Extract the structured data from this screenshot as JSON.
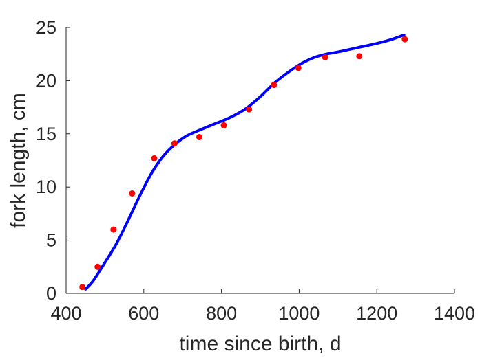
{
  "chart_data": {
    "type": "scatter",
    "title": "",
    "xlabel": "time since birth, d",
    "ylabel": "fork length, cm",
    "xlim": [
      400,
      1400
    ],
    "ylim": [
      0,
      25
    ],
    "xticks": [
      400,
      600,
      800,
      1000,
      1200,
      1400
    ],
    "yticks": [
      0,
      5,
      10,
      15,
      20,
      25
    ],
    "grid": false,
    "box": false,
    "colors": {
      "points": "#ff0000",
      "fit_line": "#0000ff",
      "axes": "#262626"
    },
    "series": [
      {
        "kind": "markers",
        "x": [
          442,
          481,
          522,
          570,
          627,
          679,
          743,
          806,
          871,
          935,
          998,
          1067,
          1155,
          1272
        ],
        "y": [
          0.6,
          2.5,
          6.0,
          9.4,
          12.7,
          14.1,
          14.7,
          15.8,
          17.3,
          19.6,
          21.2,
          22.2,
          22.3,
          23.9
        ]
      },
      {
        "kind": "line",
        "x": [
          450,
          470,
          500,
          530,
          560,
          590,
          620,
          650,
          680,
          710,
          740,
          780,
          820,
          860,
          900,
          940,
          980,
          1010,
          1040,
          1070,
          1100,
          1150,
          1200,
          1240,
          1270
        ],
        "y": [
          0.4,
          1.2,
          2.9,
          4.7,
          6.9,
          9.2,
          11.3,
          12.9,
          14.0,
          14.8,
          15.3,
          15.9,
          16.5,
          17.3,
          18.5,
          19.9,
          21.0,
          21.7,
          22.2,
          22.5,
          22.7,
          23.1,
          23.5,
          23.9,
          24.3
        ]
      }
    ]
  }
}
